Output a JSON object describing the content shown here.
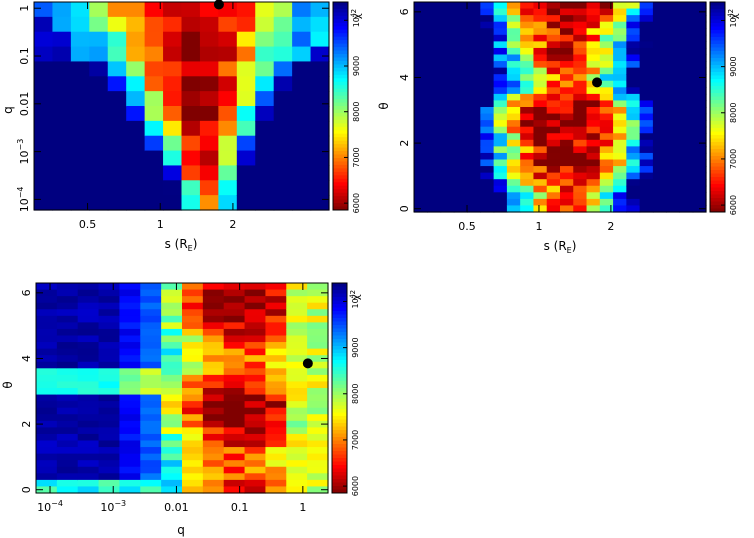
{
  "colors": {
    "bad": "#0a0f8a",
    "good": "#ff1a1a",
    "marker": "#000000"
  },
  "chart_data": [
    {
      "type": "heatmap",
      "id": "s_q",
      "xlabel": "s (R",
      "xlabel_sub": "E",
      "xlabel_close": ")",
      "ylabel": "q",
      "xscale": "log",
      "yscale": "log",
      "xlim": [
        0.3,
        5.0
      ],
      "ylim": [
        6e-05,
        1.35
      ],
      "x_ticks": [
        {
          "v": 0.5,
          "label": "0.5"
        },
        {
          "v": 1,
          "label": "1"
        },
        {
          "v": 2,
          "label": "2"
        }
      ],
      "y_ticks": [
        {
          "v": 1,
          "label": "1"
        },
        {
          "v": 0.1,
          "label": "0.1"
        },
        {
          "v": 0.01,
          "label": "0.01"
        },
        {
          "v": 0.001,
          "label": "10",
          "exp": "−3"
        },
        {
          "v": 0.0001,
          "label": "10",
          "exp": "−4"
        }
      ],
      "colorbar": {
        "title": "χ",
        "title_exp": "2",
        "range": [
          5850,
          10400
        ],
        "ticks": [
          {
            "v": 6000,
            "label": "6000"
          },
          {
            "v": 7000,
            "label": "7000"
          },
          {
            "v": 8000,
            "label": "8000"
          },
          {
            "v": 9000,
            "label": "9000"
          },
          {
            "v": 10000,
            "label": "10",
            "exp": "4"
          }
        ]
      },
      "best_fit": {
        "x": 1.75,
        "y": 1.2
      },
      "nx": 16,
      "ny": 14
    },
    {
      "type": "heatmap",
      "id": "s_theta",
      "xlabel": "s (R",
      "xlabel_sub": "E",
      "xlabel_close": ")",
      "ylabel": "θ",
      "xscale": "log",
      "yscale": "linear",
      "xlim": [
        0.3,
        5.0
      ],
      "ylim": [
        -0.1,
        6.3
      ],
      "x_ticks": [
        {
          "v": 0.5,
          "label": "0.5"
        },
        {
          "v": 1,
          "label": "1"
        },
        {
          "v": 2,
          "label": "2"
        }
      ],
      "y_ticks": [
        {
          "v": 0,
          "label": "0"
        },
        {
          "v": 2,
          "label": "2"
        },
        {
          "v": 4,
          "label": "4"
        },
        {
          "v": 6,
          "label": "6"
        }
      ],
      "colorbar": {
        "title": "χ",
        "title_exp": "2",
        "range": [
          5850,
          10400
        ],
        "ticks": [
          {
            "v": 6000,
            "label": "6000"
          },
          {
            "v": 7000,
            "label": "7000"
          },
          {
            "v": 8000,
            "label": "8000"
          },
          {
            "v": 9000,
            "label": "9000"
          },
          {
            "v": 10000,
            "label": "10",
            "exp": "4"
          }
        ]
      },
      "best_fit": {
        "x": 1.75,
        "y": 3.85
      },
      "nx": 22,
      "ny": 32
    },
    {
      "type": "heatmap",
      "id": "q_theta",
      "xlabel": "q",
      "ylabel": "θ",
      "xscale": "log",
      "yscale": "linear",
      "xlim": [
        6e-05,
        2.5
      ],
      "ylim": [
        -0.1,
        6.3
      ],
      "x_ticks": [
        {
          "v": 0.0001,
          "label": "10",
          "exp": "−4"
        },
        {
          "v": 0.001,
          "label": "10",
          "exp": "−3"
        },
        {
          "v": 0.01,
          "label": "0.01"
        },
        {
          "v": 0.1,
          "label": "0.1"
        },
        {
          "v": 1,
          "label": "1"
        }
      ],
      "y_ticks": [
        {
          "v": 0,
          "label": "0"
        },
        {
          "v": 2,
          "label": "2"
        },
        {
          "v": 4,
          "label": "4"
        },
        {
          "v": 6,
          "label": "6"
        }
      ],
      "colorbar": {
        "title": "χ",
        "title_exp": "2",
        "range": [
          5850,
          10400
        ],
        "ticks": [
          {
            "v": 6000,
            "label": "6000"
          },
          {
            "v": 7000,
            "label": "7000"
          },
          {
            "v": 8000,
            "label": "8000"
          },
          {
            "v": 9000,
            "label": "9000"
          },
          {
            "v": 10000,
            "label": "10",
            "exp": "4"
          }
        ]
      },
      "best_fit": {
        "x": 1.2,
        "y": 3.85
      },
      "nx": 14,
      "ny": 32
    }
  ]
}
